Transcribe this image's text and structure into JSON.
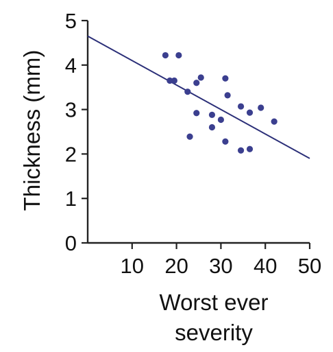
{
  "chart_data": {
    "type": "scatter",
    "title": "",
    "xlabel": [
      "Worst ever",
      "severity"
    ],
    "ylabel": "Thickness (mm)",
    "xlim": [
      0,
      50
    ],
    "ylim": [
      0,
      5
    ],
    "xticks": [
      10,
      20,
      30,
      40,
      50
    ],
    "yticks": [
      0,
      1,
      2,
      3,
      4,
      5
    ],
    "grid": false,
    "legend": "none",
    "colors": {
      "points": "#3b3f8f",
      "line": "#2b2f78",
      "axis": "#222222"
    },
    "series": [
      {
        "points": [
          {
            "x": 17.5,
            "y": 4.22
          },
          {
            "x": 20.5,
            "y": 4.22
          },
          {
            "x": 18.5,
            "y": 3.65
          },
          {
            "x": 19.5,
            "y": 3.65
          },
          {
            "x": 22.5,
            "y": 3.4
          },
          {
            "x": 24.5,
            "y": 3.6
          },
          {
            "x": 25.5,
            "y": 3.72
          },
          {
            "x": 24.5,
            "y": 2.92
          },
          {
            "x": 23.0,
            "y": 2.39
          },
          {
            "x": 28.0,
            "y": 2.88
          },
          {
            "x": 28.0,
            "y": 2.6
          },
          {
            "x": 30.0,
            "y": 2.77
          },
          {
            "x": 31.0,
            "y": 2.28
          },
          {
            "x": 31.0,
            "y": 3.7
          },
          {
            "x": 31.5,
            "y": 3.32
          },
          {
            "x": 34.5,
            "y": 3.07
          },
          {
            "x": 36.5,
            "y": 2.93
          },
          {
            "x": 39.0,
            "y": 3.04
          },
          {
            "x": 42.0,
            "y": 2.73
          },
          {
            "x": 34.5,
            "y": 2.08
          },
          {
            "x": 36.5,
            "y": 2.11
          }
        ]
      }
    ],
    "fit_line": {
      "x": [
        0,
        50
      ],
      "y": [
        4.65,
        1.9
      ]
    }
  }
}
